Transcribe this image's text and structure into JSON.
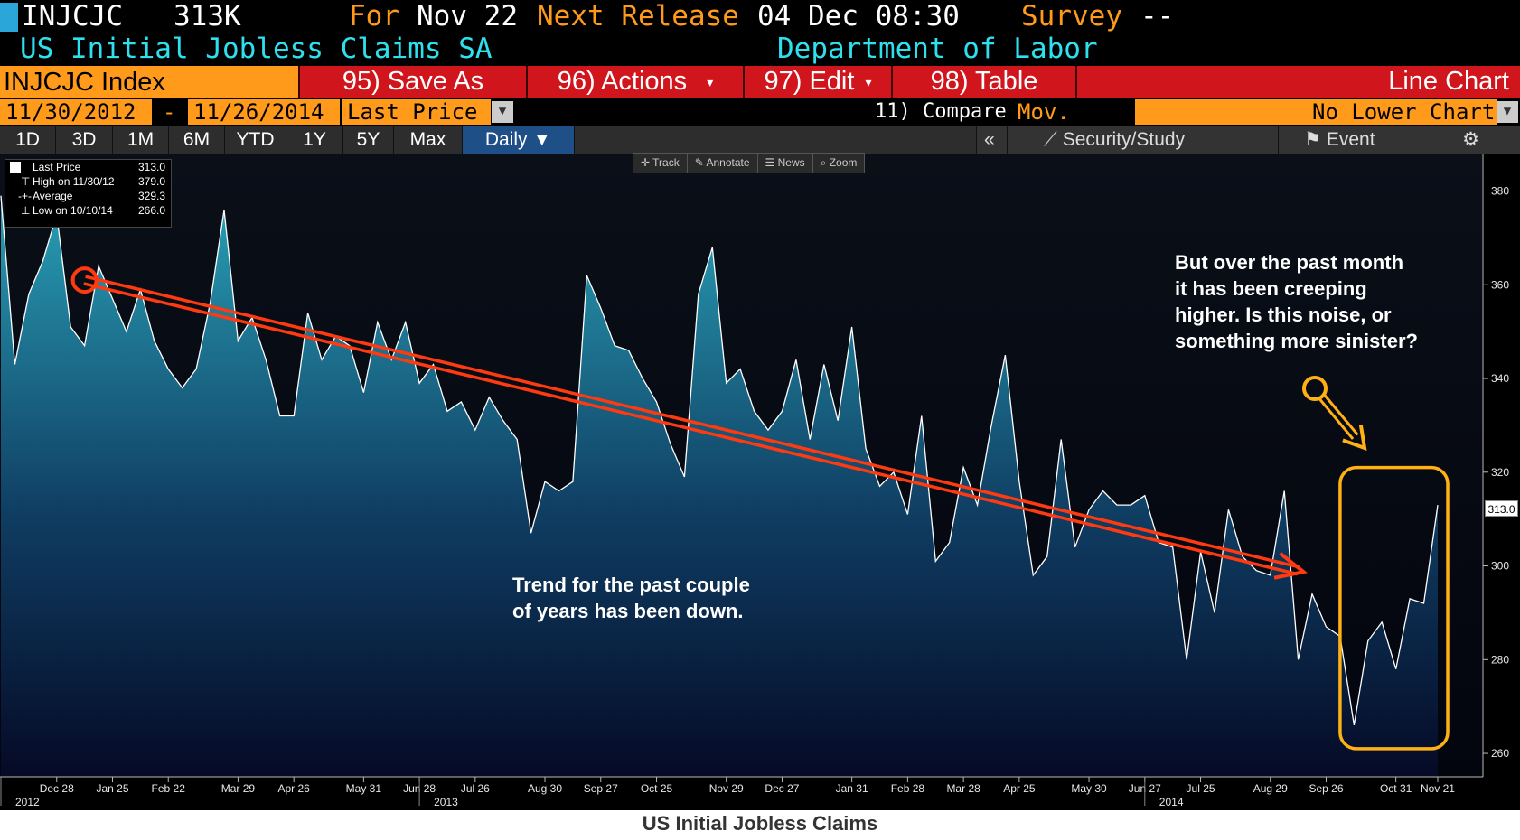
{
  "header": {
    "ticker": "INJCJC",
    "value": "313K",
    "for_label": "For",
    "for_date": "Nov 22",
    "next_release_label": "Next Release",
    "next_release_date": "04 Dec 08:30",
    "survey_label": "Survey",
    "survey_value": "--",
    "name": "US Initial Jobless Claims SA",
    "source": "Department of Labor"
  },
  "toolbar": {
    "index_label": "INJCJC Index",
    "save_as": "95) Save As",
    "actions": "96) Actions",
    "edit": "97) Edit",
    "table": "98) Table",
    "chart_type": "Line Chart"
  },
  "range": {
    "start": "11/30/2012",
    "dash": "-",
    "end": "11/26/2014",
    "field": "Last Price",
    "compare_label": "11) Compare",
    "mov_avgs": "Mov. Avgs",
    "lower_chart": "No Lower Chart"
  },
  "periods": {
    "tabs": [
      "1D",
      "3D",
      "1M",
      "6M",
      "YTD",
      "1Y",
      "5Y",
      "Max"
    ],
    "active": "Daily ▼",
    "collapse": "«",
    "security_study": "Security/Study",
    "event": "Event"
  },
  "chart_tools": [
    "Track",
    "Annotate",
    "News",
    "Zoom"
  ],
  "legend": {
    "rows": [
      {
        "label": "Last Price",
        "value": "313.0"
      },
      {
        "label": "High on 11/30/12",
        "value": "379.0"
      },
      {
        "label": "Average",
        "value": "329.3"
      },
      {
        "label": "Low on 10/10/14",
        "value": "266.0"
      }
    ]
  },
  "annotations": {
    "trend_note": "Trend for the past couple\nof years has been down.",
    "recent_note": "But over the past month\nit has been creeping\nhigher.  Is this noise, or\nsomething more sinister?"
  },
  "last_value_label": "313.0",
  "caption": "US Initial Jobless Claims",
  "colors": {
    "fill_top": "#29a0b6",
    "fill_bottom": "#050a26",
    "line": "#ffffff",
    "trend_arrow": "#ff3a10",
    "highlight": "#ffb014",
    "amber": "#ff9a1a",
    "red_bar": "#d0151c"
  },
  "chart_data": {
    "type": "area",
    "title": "US Initial Jobless Claims",
    "xlabel": "",
    "ylabel": "",
    "ylim": [
      255,
      388
    ],
    "yticks": [
      260,
      280,
      300,
      320,
      340,
      360,
      380
    ],
    "xlim": [
      "2012-11-30",
      "2014-11-26"
    ],
    "x_ticks": [
      {
        "label": "Dec 28",
        "date": "2012-12-28"
      },
      {
        "label": "Jan 25",
        "date": "2013-01-25"
      },
      {
        "label": "Feb 22",
        "date": "2013-02-22"
      },
      {
        "label": "Mar 29",
        "date": "2013-03-29"
      },
      {
        "label": "Apr 26",
        "date": "2013-04-26"
      },
      {
        "label": "May 31",
        "date": "2013-05-31"
      },
      {
        "label": "Jun 28",
        "date": "2013-06-28"
      },
      {
        "label": "Jul 26",
        "date": "2013-07-26"
      },
      {
        "label": "Aug 30",
        "date": "2013-08-30"
      },
      {
        "label": "Sep 27",
        "date": "2013-09-27"
      },
      {
        "label": "Oct 25",
        "date": "2013-10-25"
      },
      {
        "label": "Nov 29",
        "date": "2013-11-29"
      },
      {
        "label": "Dec 27",
        "date": "2013-12-27"
      },
      {
        "label": "Jan 31",
        "date": "2014-01-31"
      },
      {
        "label": "Feb 28",
        "date": "2014-02-28"
      },
      {
        "label": "Mar 28",
        "date": "2014-03-28"
      },
      {
        "label": "Apr 25",
        "date": "2014-04-25"
      },
      {
        "label": "May 30",
        "date": "2014-05-30"
      },
      {
        "label": "Jun 27",
        "date": "2014-06-27"
      },
      {
        "label": "Jul 25",
        "date": "2014-07-25"
      },
      {
        "label": "Aug 29",
        "date": "2014-08-29"
      },
      {
        "label": "Sep 26",
        "date": "2014-09-26"
      },
      {
        "label": "Oct 31",
        "date": "2014-10-31"
      },
      {
        "label": "Nov 21",
        "date": "2014-11-21"
      }
    ],
    "year_labels": [
      {
        "label": "2012",
        "date": "2012-11-30"
      },
      {
        "label": "2013",
        "date": "2013-06-28"
      },
      {
        "label": "2014",
        "date": "2014-06-27"
      }
    ],
    "series": [
      {
        "x": [
          "2012-11-30",
          "2012-12-07",
          "2012-12-14",
          "2012-12-21",
          "2012-12-28",
          "2013-01-04",
          "2013-01-11",
          "2013-01-18",
          "2013-01-25",
          "2013-02-01",
          "2013-02-08",
          "2013-02-15",
          "2013-02-22",
          "2013-03-01",
          "2013-03-08",
          "2013-03-15",
          "2013-03-22",
          "2013-03-29",
          "2013-04-05",
          "2013-04-12",
          "2013-04-19",
          "2013-04-26",
          "2013-05-03",
          "2013-05-10",
          "2013-05-17",
          "2013-05-24",
          "2013-05-31",
          "2013-06-07",
          "2013-06-14",
          "2013-06-21",
          "2013-06-28",
          "2013-07-05",
          "2013-07-12",
          "2013-07-19",
          "2013-07-26",
          "2013-08-02",
          "2013-08-09",
          "2013-08-16",
          "2013-08-23",
          "2013-08-30",
          "2013-09-06",
          "2013-09-13",
          "2013-09-20",
          "2013-09-27",
          "2013-10-04",
          "2013-10-11",
          "2013-10-18",
          "2013-10-25",
          "2013-11-01",
          "2013-11-08",
          "2013-11-15",
          "2013-11-22",
          "2013-11-29",
          "2013-12-06",
          "2013-12-13",
          "2013-12-20",
          "2013-12-27",
          "2014-01-03",
          "2014-01-10",
          "2014-01-17",
          "2014-01-24",
          "2014-01-31",
          "2014-02-07",
          "2014-02-14",
          "2014-02-21",
          "2014-02-28",
          "2014-03-07",
          "2014-03-14",
          "2014-03-21",
          "2014-03-28",
          "2014-04-04",
          "2014-04-11",
          "2014-04-18",
          "2014-04-25",
          "2014-05-02",
          "2014-05-09",
          "2014-05-16",
          "2014-05-23",
          "2014-05-30",
          "2014-06-06",
          "2014-06-13",
          "2014-06-20",
          "2014-06-27",
          "2014-07-04",
          "2014-07-11",
          "2014-07-18",
          "2014-07-25",
          "2014-08-01",
          "2014-08-08",
          "2014-08-15",
          "2014-08-22",
          "2014-08-29",
          "2014-09-05",
          "2014-09-12",
          "2014-09-19",
          "2014-09-26",
          "2014-10-03",
          "2014-10-10",
          "2014-10-17",
          "2014-10-24",
          "2014-10-31",
          "2014-11-07",
          "2014-11-14",
          "2014-11-21"
        ],
        "y": [
          379,
          343,
          358,
          365,
          375,
          351,
          347,
          364,
          357,
          350,
          359,
          348,
          342,
          338,
          342,
          356,
          376,
          348,
          353,
          344,
          332,
          332,
          354,
          344,
          349,
          347,
          337,
          352,
          344,
          352,
          339,
          343,
          333,
          335,
          329,
          336,
          331,
          327,
          307,
          318,
          316,
          318,
          362,
          355,
          347,
          346,
          340,
          335,
          326,
          319,
          358,
          368,
          339,
          342,
          333,
          329,
          333,
          344,
          327,
          343,
          331,
          351,
          325,
          317,
          320,
          311,
          332,
          301,
          305,
          321,
          313,
          330,
          345,
          318,
          298,
          302,
          327,
          304,
          312,
          316,
          313,
          313,
          315,
          305,
          304,
          280,
          303,
          290,
          312,
          302,
          299,
          298,
          316,
          280,
          294,
          287,
          285,
          266,
          284,
          288,
          278,
          293,
          292,
          313
        ]
      }
    ],
    "annotations": [
      {
        "type": "arrow",
        "from": [
          "2013-01-11",
          361
        ],
        "to": [
          "2014-09-12",
          299
        ],
        "text": "Trend for the past couple of years has been down."
      },
      {
        "type": "box",
        "x": [
          "2014-10-03",
          "2014-11-26"
        ],
        "y": [
          261,
          321
        ],
        "text": "But over the past month it has been creeping higher.  Is this noise, or something more sinister?"
      }
    ]
  }
}
